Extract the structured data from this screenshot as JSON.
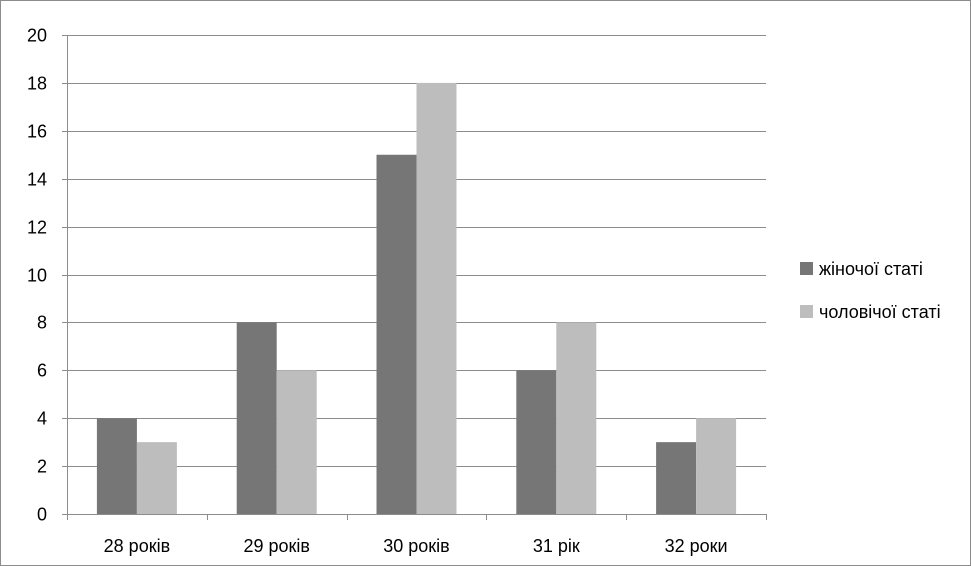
{
  "chart_data": {
    "type": "bar",
    "categories": [
      "28 років",
      "29 років",
      "30 років",
      "31 рік",
      "32 роки"
    ],
    "series": [
      {
        "name": "жіночої статі",
        "values": [
          4,
          8,
          15,
          6,
          3
        ],
        "color": "#767676"
      },
      {
        "name": "чоловічої статі",
        "values": [
          3,
          6,
          18,
          8,
          4
        ],
        "color": "#bdbdbd"
      }
    ],
    "title": "",
    "xlabel": "",
    "ylabel": "",
    "ylim": [
      0,
      20
    ],
    "yticks": [
      0,
      2,
      4,
      6,
      8,
      10,
      12,
      14,
      16,
      18,
      20
    ],
    "grid": true,
    "legend_position": "right",
    "gridline_color": "#8c8c8c"
  }
}
